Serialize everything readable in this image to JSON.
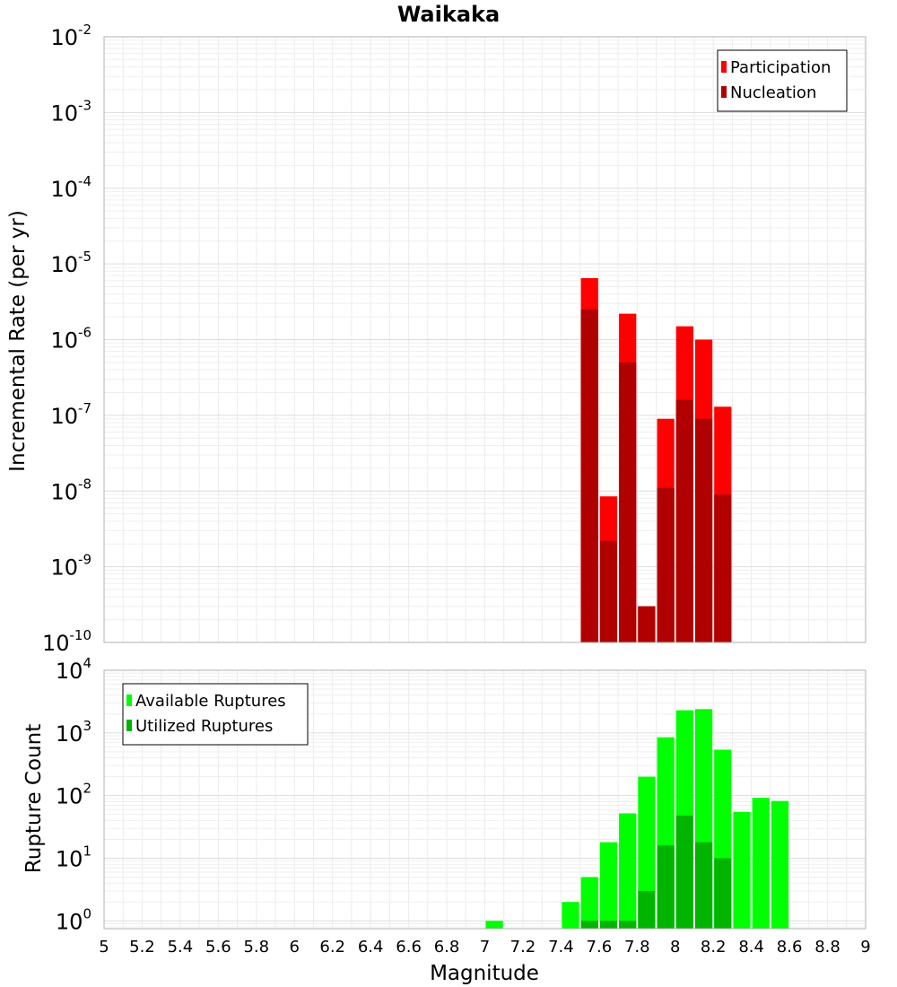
{
  "chart_data": [
    {
      "type": "bar",
      "title": "Waikaka",
      "xlabel": "",
      "ylabel": "Incremental Rate (per yr)",
      "xlim": [
        5,
        9
      ],
      "ylim": [
        1e-10,
        0.01
      ],
      "yscale": "log",
      "grid": true,
      "legend_position": "top-right",
      "bin_width": 0.1,
      "series": [
        {
          "name": "Participation",
          "color": "#ff0000",
          "x": [
            7.55,
            7.65,
            7.75,
            7.85,
            7.95,
            8.05,
            8.15,
            8.25
          ],
          "values": [
            6.5e-06,
            8.5e-09,
            2.2e-06,
            3e-10,
            9e-08,
            1.5e-06,
            1e-06,
            1.3e-07
          ]
        },
        {
          "name": "Nucleation",
          "color": "#b00000",
          "x": [
            7.55,
            7.65,
            7.75,
            7.85,
            7.95,
            8.05,
            8.15,
            8.25
          ],
          "values": [
            2.5e-06,
            2.2e-09,
            5e-07,
            3e-10,
            1.1e-08,
            1.6e-07,
            9e-08,
            9e-09
          ]
        }
      ]
    },
    {
      "type": "bar",
      "title": "",
      "xlabel": "Magnitude",
      "ylabel": "Rupture Count",
      "xlim": [
        5,
        9
      ],
      "ylim": [
        0.75,
        10000
      ],
      "yscale": "log",
      "grid": true,
      "legend_position": "top-left",
      "bin_width": 0.1,
      "x_ticks": [
        "5",
        "5.2",
        "5.4",
        "5.6",
        "5.8",
        "6",
        "6.2",
        "6.4",
        "6.6",
        "6.8",
        "7",
        "7.2",
        "7.4",
        "7.6",
        "7.8",
        "8",
        "8.2",
        "8.4",
        "8.6",
        "8.8",
        "9"
      ],
      "series": [
        {
          "name": "Available Ruptures",
          "color": "#00ff00",
          "x": [
            7.05,
            7.45,
            7.55,
            7.65,
            7.75,
            7.85,
            7.95,
            8.05,
            8.15,
            8.25,
            8.35,
            8.45,
            8.55
          ],
          "values": [
            1,
            2,
            5,
            18,
            52,
            200,
            850,
            2300,
            2400,
            540,
            55,
            92,
            82
          ]
        },
        {
          "name": "Utilized Ruptures",
          "color": "#00b400",
          "x": [
            7.55,
            7.65,
            7.75,
            7.85,
            7.95,
            8.05,
            8.15,
            8.25
          ],
          "values": [
            1,
            1,
            1,
            3,
            16,
            48,
            18,
            10
          ]
        }
      ]
    }
  ]
}
